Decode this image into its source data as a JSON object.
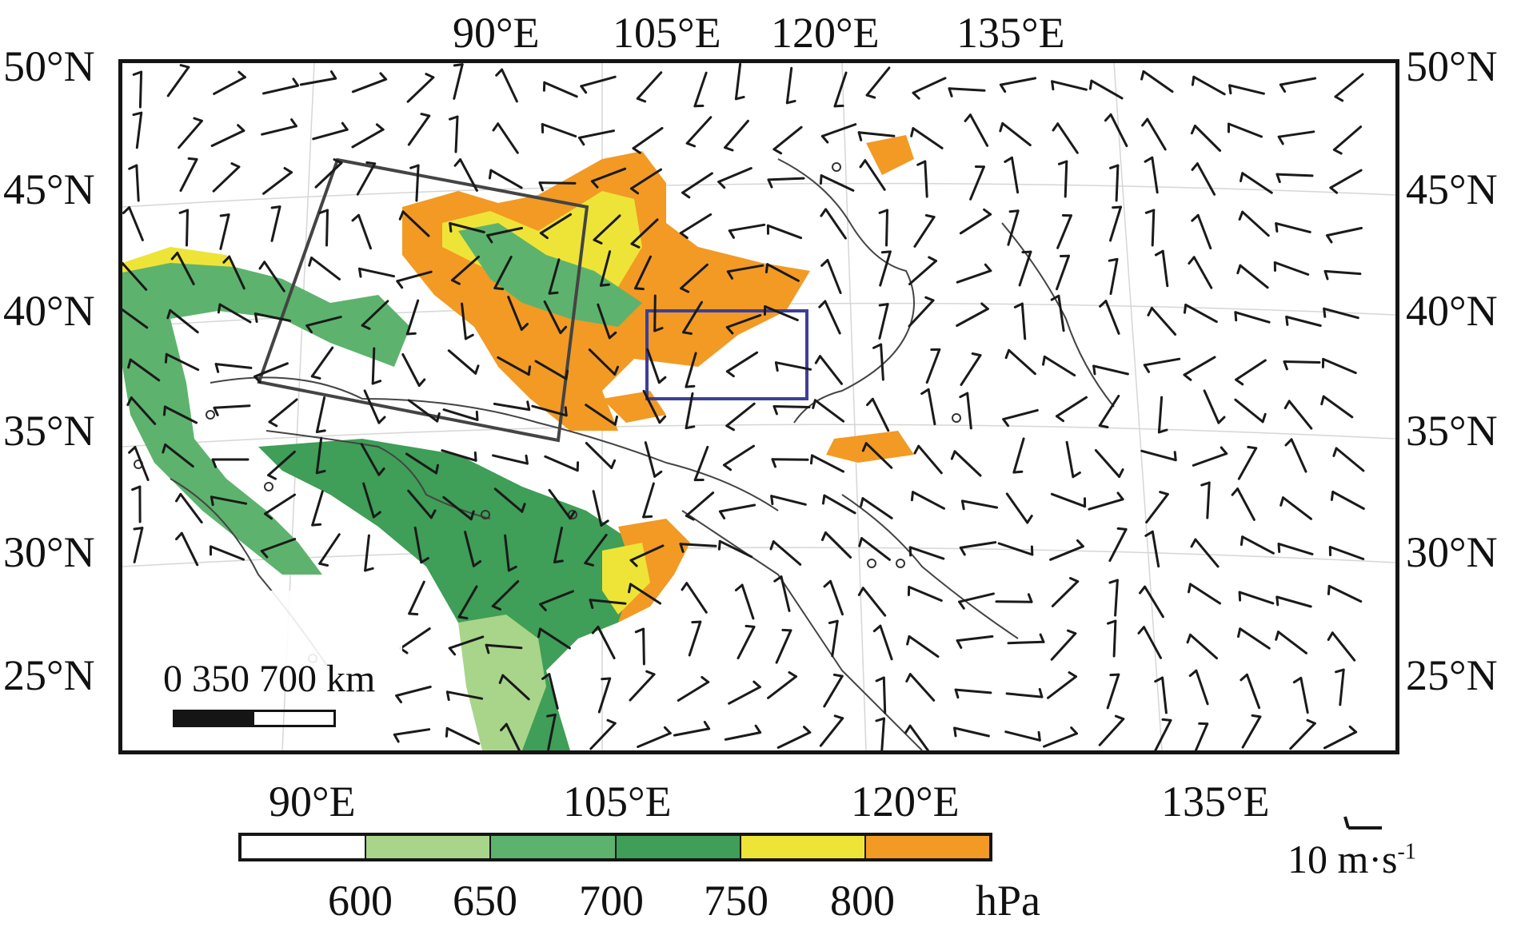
{
  "figure": {
    "top_lon_labels": [
      "90°E",
      "105°E",
      "120°E",
      "135°E"
    ],
    "bottom_lon_labels": [
      "90°E",
      "105°E",
      "120°E",
      "135°E"
    ],
    "lat_labels": [
      "50°N",
      "45°N",
      "40°N",
      "35°N",
      "30°N",
      "25°N"
    ]
  },
  "colorbar": {
    "ticks": [
      "600",
      "650",
      "700",
      "750",
      "800"
    ],
    "unit": "hPa",
    "colors": [
      "#ffffff",
      "#a8d58a",
      "#5db36d",
      "#3f9e57",
      "#eee437",
      "#f29a24"
    ]
  },
  "scale_bar": {
    "text": "0  350   700 km"
  },
  "reference_vector": {
    "value": "10 m·s",
    "exponent": "-1"
  },
  "map_colors": {
    "frame": "#151515",
    "barb": "#1a1a1a",
    "boundary": "#444444",
    "grid": "#d6d6d6",
    "box_gray": "#444444",
    "box_blue": "#3c3f9a",
    "orange": "#f29a24",
    "yellow": "#eee437",
    "green_light": "#a8d58a",
    "green_mid": "#5db36d",
    "green_dark": "#3f9e57"
  }
}
